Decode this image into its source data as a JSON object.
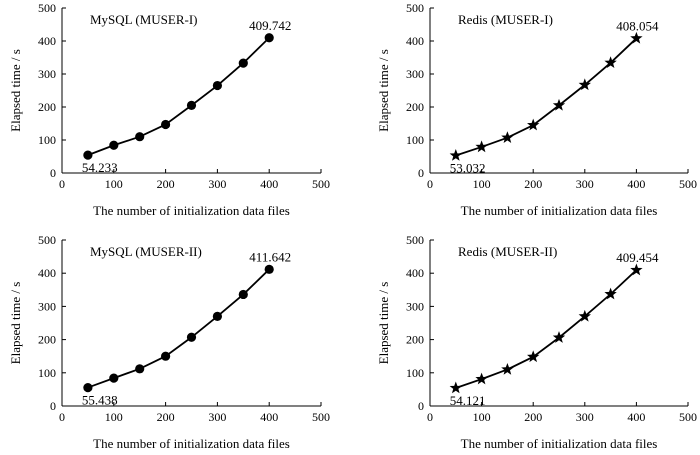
{
  "chart_data": [
    {
      "type": "line",
      "title": "MySQL (MUSER-I)",
      "xlabel": "The number of initialization data files",
      "ylabel": "Elapsed time / s",
      "xlim": [
        0,
        500
      ],
      "ylim": [
        0,
        500
      ],
      "xticks": [
        0,
        100,
        200,
        300,
        400,
        500
      ],
      "yticks": [
        0,
        100,
        200,
        300,
        400,
        500
      ],
      "marker": "circle",
      "x": [
        50,
        100,
        150,
        200,
        250,
        300,
        350,
        400
      ],
      "y": [
        54.233,
        84,
        110,
        147,
        205,
        265,
        333,
        409.742
      ],
      "start_label": "54.233",
      "end_label": "409.742"
    },
    {
      "type": "line",
      "title": "Redis (MUSER-I)",
      "xlabel": "The number of initialization data files",
      "ylabel": "Elapsed time / s",
      "xlim": [
        0,
        500
      ],
      "ylim": [
        0,
        500
      ],
      "xticks": [
        0,
        100,
        200,
        300,
        400,
        500
      ],
      "yticks": [
        0,
        100,
        200,
        300,
        400,
        500
      ],
      "marker": "star",
      "x": [
        50,
        100,
        150,
        200,
        250,
        300,
        350,
        400
      ],
      "y": [
        53.032,
        79,
        107,
        145,
        205,
        267,
        334,
        408.054
      ],
      "start_label": "53.032",
      "end_label": "408.054"
    },
    {
      "type": "line",
      "title": "MySQL (MUSER-II)",
      "xlabel": "The number of initialization data files",
      "ylabel": "Elapsed time / s",
      "xlim": [
        0,
        500
      ],
      "ylim": [
        0,
        500
      ],
      "xticks": [
        0,
        100,
        200,
        300,
        400,
        500
      ],
      "yticks": [
        0,
        100,
        200,
        300,
        400,
        500
      ],
      "marker": "circle",
      "x": [
        50,
        100,
        150,
        200,
        250,
        300,
        350,
        400
      ],
      "y": [
        55.438,
        84,
        112,
        150,
        207,
        270,
        336,
        411.642
      ],
      "start_label": "55.438",
      "end_label": "411.642"
    },
    {
      "type": "line",
      "title": "Redis (MUSER-II)",
      "xlabel": "The number of initialization data files",
      "ylabel": "Elapsed time / s",
      "xlim": [
        0,
        500
      ],
      "ylim": [
        0,
        500
      ],
      "xticks": [
        0,
        100,
        200,
        300,
        400,
        500
      ],
      "yticks": [
        0,
        100,
        200,
        300,
        400,
        500
      ],
      "marker": "star",
      "x": [
        50,
        100,
        150,
        200,
        250,
        300,
        350,
        400
      ],
      "y": [
        54.121,
        81,
        110,
        148,
        206,
        270,
        337,
        409.454
      ],
      "start_label": "54.121",
      "end_label": "409.454"
    }
  ]
}
